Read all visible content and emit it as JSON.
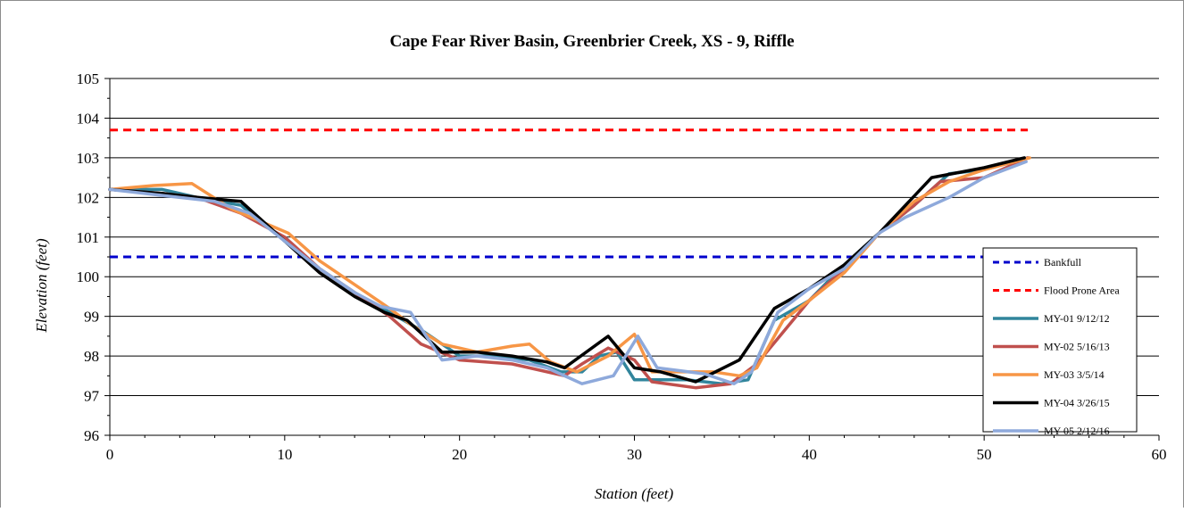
{
  "chart_data": {
    "type": "line",
    "title": "Cape Fear River Basin, Greenbrier Creek, XS - 9, Riffle",
    "xlabel": "Station (feet)",
    "ylabel": "Elevation (feet)",
    "xlim": [
      0,
      60
    ],
    "ylim": [
      96,
      105
    ],
    "xticks": [
      "0",
      "10",
      "20",
      "30",
      "40",
      "50",
      "60"
    ],
    "yticks": [
      "96",
      "97",
      "98",
      "99",
      "100",
      "101",
      "102",
      "103",
      "104",
      "105"
    ],
    "grid": "horizontal",
    "legend_position": "right",
    "series": [
      {
        "name": "Bankfull",
        "color": "#0000CC",
        "dash": true,
        "width": 3,
        "x": [
          0,
          52.5
        ],
        "y": [
          100.5,
          100.5
        ]
      },
      {
        "name": "Flood Prone Area",
        "color": "#FF0000",
        "dash": true,
        "width": 3,
        "x": [
          0,
          52.5
        ],
        "y": [
          103.7,
          103.7
        ]
      },
      {
        "name": "MY-01 9/12/12",
        "color": "#31859C",
        "dash": false,
        "width": 3.5,
        "x": [
          0,
          3,
          5,
          7.5,
          10,
          12,
          14,
          16,
          18,
          20,
          22,
          24,
          25.8,
          27,
          28,
          29,
          30,
          31,
          33,
          35,
          36.5,
          38,
          40,
          42,
          44,
          46,
          48,
          50,
          52.5
        ],
        "y": [
          102.2,
          102.2,
          102.0,
          101.8,
          100.9,
          100.2,
          99.6,
          99.1,
          98.6,
          98.0,
          98.0,
          97.9,
          97.6,
          97.6,
          98.0,
          98.1,
          97.4,
          97.4,
          97.4,
          97.3,
          97.4,
          98.9,
          99.4,
          100.3,
          101.1,
          101.8,
          102.6,
          102.7,
          103.0
        ]
      },
      {
        "name": "MY-02 5/16/13",
        "color": "#C0504D",
        "dash": false,
        "width": 3.5,
        "x": [
          0,
          3,
          5,
          7.5,
          10,
          12,
          14,
          16,
          17.8,
          20,
          23,
          26,
          27,
          28.5,
          30,
          31,
          33.5,
          35.5,
          37,
          38.5,
          40,
          42,
          44,
          46,
          47.5,
          50,
          52.5
        ],
        "y": [
          102.2,
          102.1,
          102.0,
          101.6,
          101.0,
          100.2,
          99.6,
          99.0,
          98.3,
          97.9,
          97.8,
          97.5,
          97.8,
          98.2,
          97.9,
          97.35,
          97.2,
          97.3,
          97.8,
          98.6,
          99.4,
          100.2,
          101.1,
          101.8,
          102.4,
          102.5,
          103.0
        ]
      },
      {
        "name": "MY-03 3/5/14",
        "color": "#F79646",
        "dash": false,
        "width": 3.5,
        "x": [
          0,
          2.5,
          4.7,
          7,
          10.2,
          12,
          14,
          16,
          17.2,
          19,
          21,
          23,
          24,
          25.2,
          26.7,
          28.5,
          30,
          31,
          33,
          34.5,
          36,
          37,
          38.5,
          40,
          42,
          44,
          46,
          48,
          50,
          52.6
        ],
        "y": [
          102.2,
          102.3,
          102.35,
          101.7,
          101.1,
          100.4,
          99.8,
          99.2,
          98.8,
          98.3,
          98.1,
          98.25,
          98.3,
          97.85,
          97.6,
          98.0,
          98.55,
          97.6,
          97.6,
          97.6,
          97.5,
          97.7,
          98.9,
          99.4,
          100.1,
          101.1,
          101.9,
          102.4,
          102.7,
          103.0
        ]
      },
      {
        "name": "MY-04 3/26/15",
        "color": "#000000",
        "dash": false,
        "width": 3.5,
        "x": [
          0,
          3,
          5,
          7.5,
          10,
          12,
          14,
          15.7,
          17,
          19,
          21,
          23,
          25,
          26,
          28.5,
          30,
          31.5,
          33.5,
          36,
          38,
          40,
          42,
          44,
          47,
          50,
          52.3
        ],
        "y": [
          102.2,
          102.1,
          102.0,
          101.9,
          100.9,
          100.1,
          99.5,
          99.1,
          98.9,
          98.1,
          98.1,
          98.0,
          97.85,
          97.7,
          98.5,
          97.7,
          97.6,
          97.35,
          97.9,
          99.2,
          99.7,
          100.3,
          101.1,
          102.5,
          102.75,
          103.0
        ]
      },
      {
        "name": "MY-05 2/12/16",
        "color": "#8EA9DB",
        "dash": false,
        "width": 3.5,
        "x": [
          0,
          3,
          6,
          8,
          10,
          12,
          14,
          15.5,
          17.2,
          19,
          21,
          23,
          25,
          27,
          28.8,
          30.2,
          31.3,
          34,
          35.7,
          36.7,
          38.2,
          40,
          42,
          44,
          45.5,
          48,
          50,
          52.4
        ],
        "y": [
          102.2,
          102.05,
          101.9,
          101.6,
          100.9,
          100.2,
          99.6,
          99.25,
          99.1,
          97.9,
          98.0,
          97.9,
          97.7,
          97.3,
          97.5,
          98.5,
          97.7,
          97.55,
          97.3,
          97.6,
          99.1,
          99.7,
          100.2,
          101.1,
          101.5,
          102.0,
          102.5,
          102.9
        ]
      }
    ]
  }
}
